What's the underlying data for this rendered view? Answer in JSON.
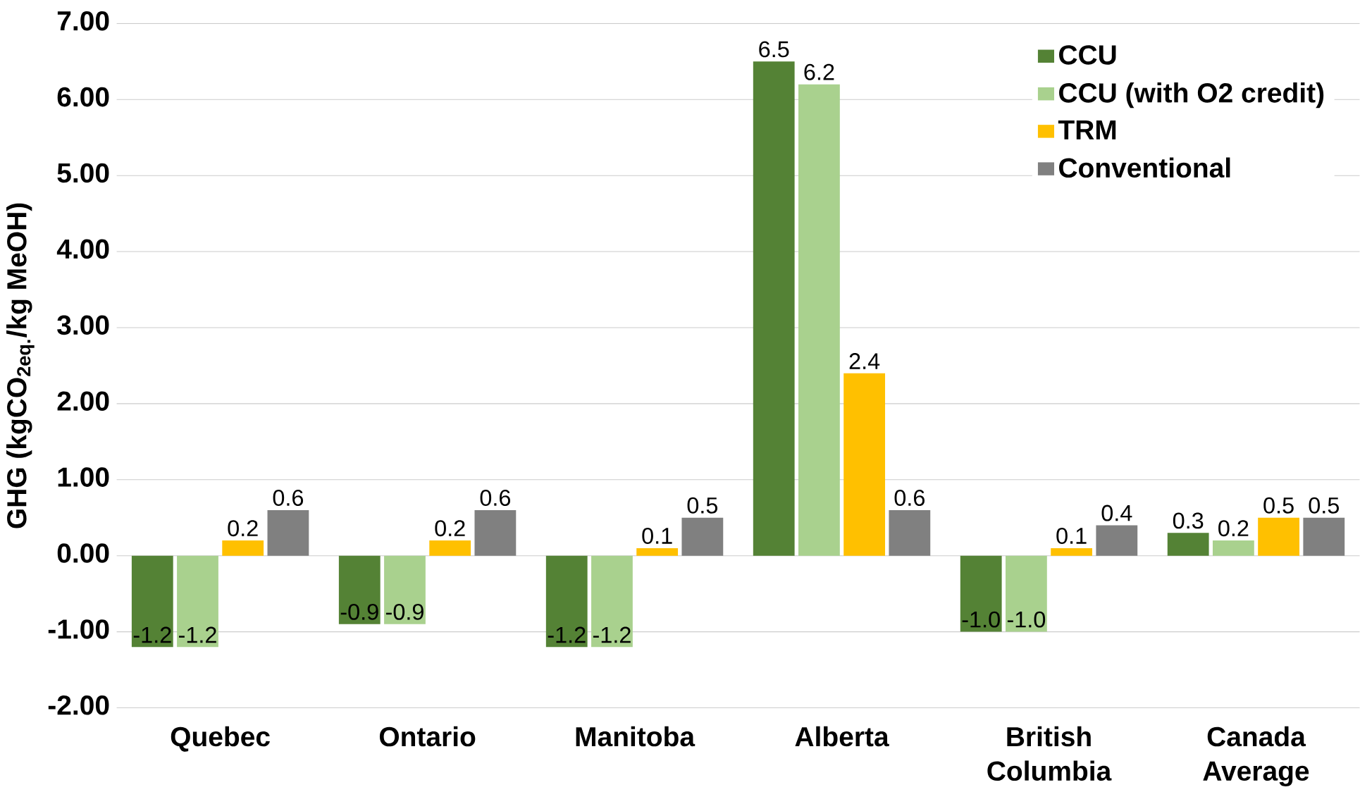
{
  "chart_data": {
    "type": "bar",
    "ylabel": "GHG (kgCO$_{2eq.}$/kg MeOH)",
    "categories": [
      "Quebec",
      "Ontario",
      "Manitoba",
      "Alberta",
      "British Columbia",
      "Canada Average"
    ],
    "series": [
      {
        "name": "CCU",
        "color": "#548235",
        "values": [
          -1.2,
          -0.9,
          -1.2,
          6.5,
          -1.0,
          0.3
        ],
        "value_labels": [
          "-1.2",
          "-0.9",
          "-1.2",
          "6.5",
          "-1.0",
          "0.3"
        ]
      },
      {
        "name": "CCU (with O2 credit)",
        "color": "#a9d18e",
        "values": [
          -1.2,
          -0.9,
          -1.2,
          6.2,
          -1.0,
          0.2
        ],
        "value_labels": [
          "-1.2",
          "-0.9",
          "-1.2",
          "6.2",
          "-1.0",
          "0.2"
        ]
      },
      {
        "name": "TRM",
        "color": "#ffc000",
        "values": [
          0.2,
          0.2,
          0.1,
          2.4,
          0.1,
          0.5
        ],
        "value_labels": [
          "0.2",
          "0.2",
          "0.1",
          "2.4",
          "0.1",
          "0.5"
        ]
      },
      {
        "name": "Conventional",
        "color": "#808080",
        "values": [
          0.6,
          0.6,
          0.5,
          0.6,
          0.4,
          0.5
        ],
        "value_labels": [
          "0.6",
          "0.6",
          "0.5",
          "0.6",
          "0.4",
          "0.5"
        ]
      }
    ],
    "ylim": [
      -2,
      7
    ],
    "yticks": [
      {
        "value": -2,
        "label": "-2.00"
      },
      {
        "value": -1,
        "label": "-1.00"
      },
      {
        "value": 0,
        "label": "0.00"
      },
      {
        "value": 1,
        "label": "1.00"
      },
      {
        "value": 2,
        "label": "2.00"
      },
      {
        "value": 3,
        "label": "3.00"
      },
      {
        "value": 4,
        "label": "4.00"
      },
      {
        "value": 5,
        "label": "5.00"
      },
      {
        "value": 6,
        "label": "6.00"
      },
      {
        "value": 7,
        "label": "7.00"
      }
    ],
    "grid": "y",
    "legend": "top right"
  }
}
